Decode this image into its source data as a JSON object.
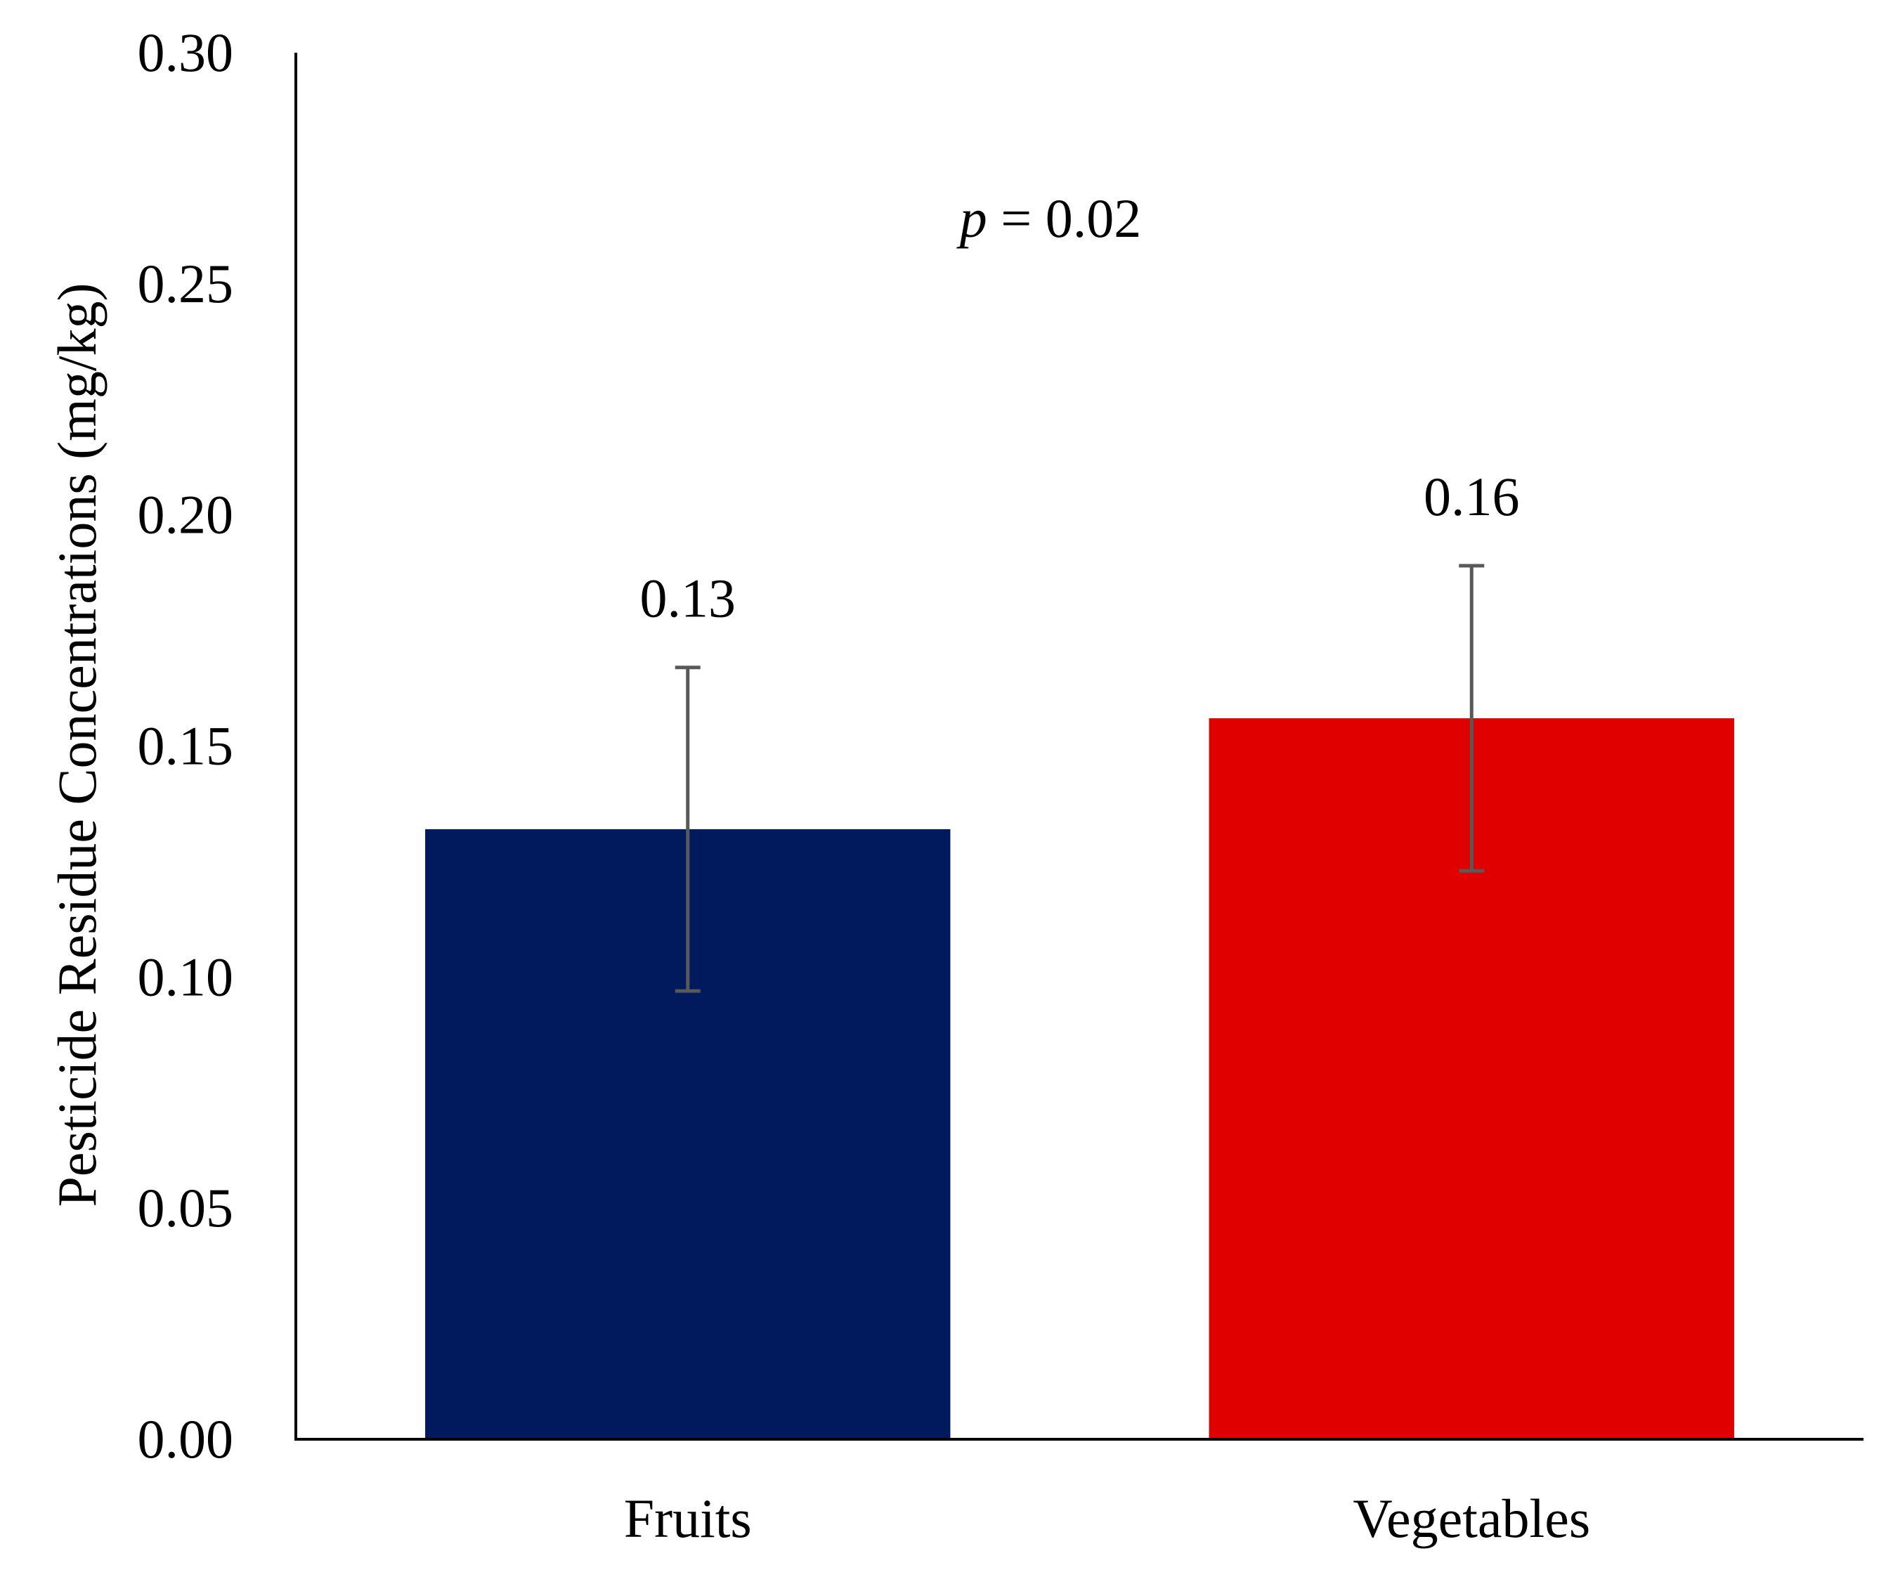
{
  "chart_data": {
    "type": "bar",
    "title": "",
    "xlabel": "",
    "ylabel": "Pesticide Residue Concentrations (mg/kg)",
    "categories": [
      "Fruits",
      "Vegetables"
    ],
    "values": [
      0.132,
      0.156
    ],
    "data_labels": [
      "0.13",
      "0.16"
    ],
    "error_bars": [
      {
        "lower": 0.097,
        "upper": 0.167
      },
      {
        "lower": 0.123,
        "upper": 0.189
      }
    ],
    "colors": [
      "#001a5e",
      "#e00000"
    ],
    "error_bar_color": "#595959",
    "ylim": [
      0,
      0.3
    ],
    "yticks": [
      0,
      0.05,
      0.1,
      0.15,
      0.2,
      0.25,
      0.3
    ],
    "ytick_labels": [
      "0.00",
      "0.05",
      "0.10",
      "0.15",
      "0.20",
      "0.25",
      "0.30"
    ],
    "grid": false,
    "legend": "none",
    "annotation": {
      "italic_part": "p",
      "rest": " = 0.02"
    }
  }
}
